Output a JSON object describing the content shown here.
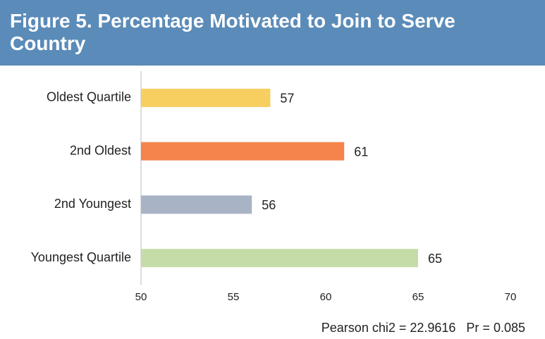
{
  "chart_data": {
    "type": "bar",
    "orientation": "horizontal",
    "title": "Figure 5. Percentage Motivated to Join to Serve Country",
    "categories": [
      "Oldest Quartile",
      "2nd Oldest",
      "2nd Youngest",
      "Youngest Quartile"
    ],
    "values": [
      57,
      61,
      56,
      65
    ],
    "colors": [
      "#f7cf60",
      "#f4844c",
      "#a9b3c6",
      "#c5dca8"
    ],
    "xlim": [
      50,
      70
    ],
    "xticks": [
      50,
      55,
      60,
      65,
      70
    ],
    "annotation": "Pearson chi2 = 22.9616   Pr = 0.085"
  }
}
